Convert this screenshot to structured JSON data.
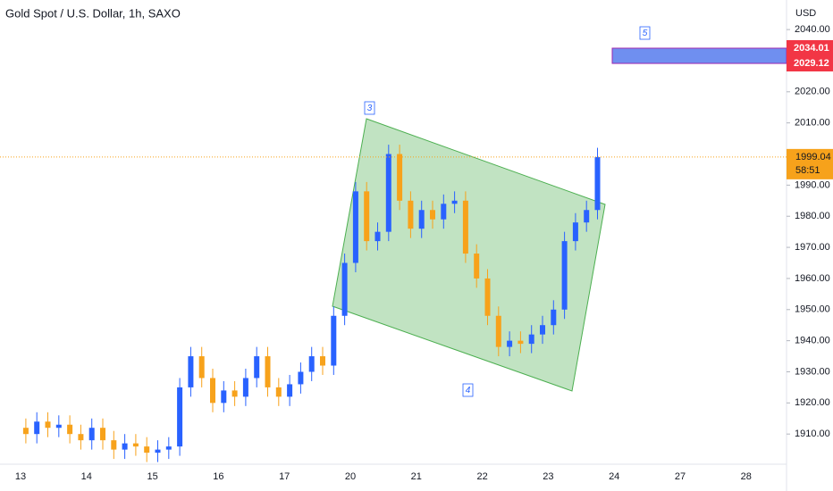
{
  "chart_data": {
    "type": "candlestick",
    "title": "Gold Spot / U.S. Dollar, 1h, SAXO",
    "y_axis_label": "USD",
    "categories": [
      "13",
      "14",
      "15",
      "16",
      "17",
      "20",
      "21",
      "22",
      "23",
      "24",
      "27",
      "28"
    ],
    "open": [
      1912,
      1910,
      1914,
      1912,
      1913,
      1910,
      1908,
      1912,
      1908,
      1905,
      1907,
      1906,
      1904,
      1905,
      1906,
      1925,
      1935,
      1928,
      1920,
      1924,
      1922,
      1928,
      1935,
      1925,
      1922,
      1926,
      1930,
      1935,
      1932,
      1948,
      1965,
      1988,
      1972,
      1975,
      2000,
      1985,
      1976,
      1982,
      1979,
      1984,
      1985,
      1968,
      1960,
      1948,
      1938,
      1940,
      1939,
      1942,
      1945,
      1950,
      1972,
      1978,
      1982
    ],
    "high": [
      1915,
      1917,
      1917,
      1916,
      1916,
      1913,
      1915,
      1915,
      1911,
      1910,
      1910,
      1909,
      1908,
      1909,
      1928,
      1938,
      1938,
      1931,
      1927,
      1927,
      1931,
      1938,
      1938,
      1928,
      1929,
      1933,
      1938,
      1938,
      1951,
      1968,
      1991,
      1991,
      1978,
      2003,
      2003,
      1988,
      1985,
      1985,
      1987,
      1988,
      1988,
      1971,
      1963,
      1951,
      1943,
      1943,
      1945,
      1948,
      1953,
      1975,
      1981,
      1985,
      2002
    ],
    "low": [
      1907,
      1907,
      1909,
      1909,
      1907,
      1905,
      1905,
      1905,
      1902,
      1902,
      1903,
      1901,
      1901,
      1902,
      1903,
      1922,
      1925,
      1917,
      1917,
      1919,
      1919,
      1925,
      1922,
      1919,
      1919,
      1923,
      1927,
      1929,
      1929,
      1945,
      1962,
      1969,
      1969,
      1972,
      1982,
      1973,
      1973,
      1976,
      1976,
      1981,
      1965,
      1957,
      1945,
      1935,
      1935,
      1936,
      1936,
      1939,
      1942,
      1947,
      1969,
      1975,
      1979
    ],
    "close": [
      1910,
      1914,
      1912,
      1913,
      1910,
      1908,
      1912,
      1908,
      1905,
      1907,
      1906,
      1904,
      1905,
      1906,
      1925,
      1935,
      1928,
      1920,
      1924,
      1922,
      1928,
      1935,
      1925,
      1922,
      1926,
      1930,
      1935,
      1932,
      1948,
      1965,
      1988,
      1972,
      1975,
      2000,
      1985,
      1976,
      1982,
      1979,
      1984,
      1985,
      1968,
      1960,
      1948,
      1938,
      1940,
      1939,
      1942,
      1945,
      1950,
      1972,
      1978,
      1982,
      1999
    ],
    "up_color": "#2962ff",
    "down_color": "#f7a21b",
    "ylim": [
      1900.3,
      2049.5
    ],
    "yticks": [
      {
        "value": 2040,
        "label": "2040.00"
      },
      {
        "value": 2020,
        "label": "2020.00"
      },
      {
        "value": 2010,
        "label": "2010.00"
      },
      {
        "value": 1990,
        "label": "1990.00"
      },
      {
        "value": 1980,
        "label": "1980.00"
      },
      {
        "value": 1970,
        "label": "1970.00"
      },
      {
        "value": 1960,
        "label": "1960.00"
      },
      {
        "value": 1950,
        "label": "1950.00"
      },
      {
        "value": 1940,
        "label": "1940.00"
      },
      {
        "value": 1930,
        "label": "1930.00"
      },
      {
        "value": 1920,
        "label": "1920.00"
      },
      {
        "value": 1910,
        "label": "1910.00"
      }
    ],
    "zone": {
      "top": {
        "value": 2034.01,
        "label": "2034.01"
      },
      "bottom": {
        "value": 2029.12,
        "label": "2029.12"
      },
      "color": "#6f8ff0",
      "label_color": "#f23645"
    },
    "last_price": {
      "value": 1999.04,
      "label": "1999.04",
      "countdown": "58:51",
      "color": "#f7a21b"
    },
    "annotations": [
      "3",
      "4",
      "5"
    ],
    "grid": false
  }
}
